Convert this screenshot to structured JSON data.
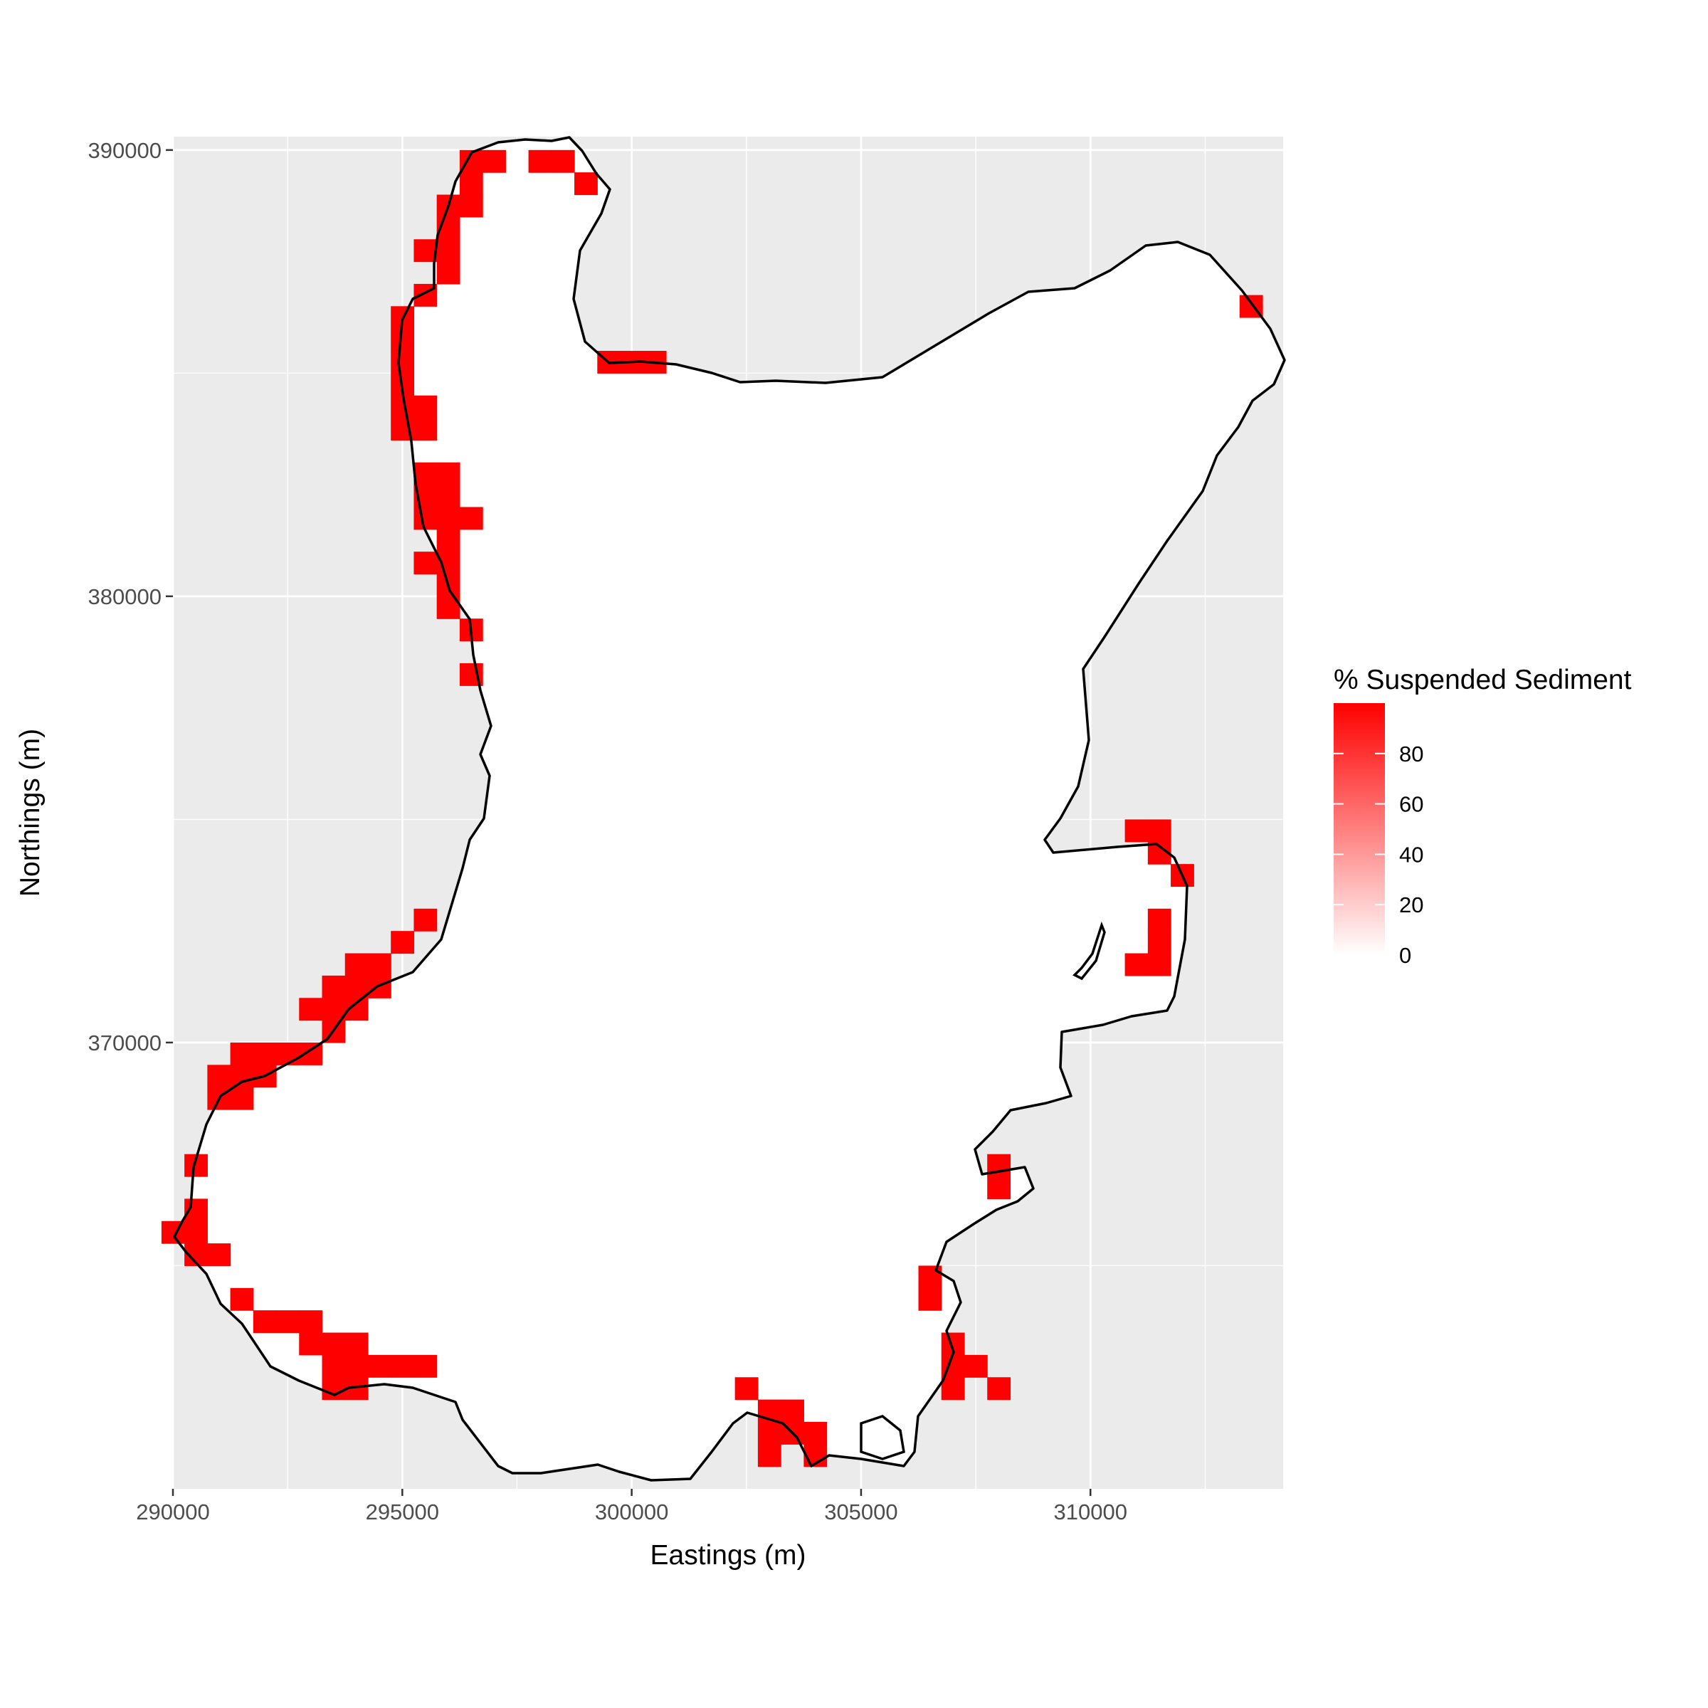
{
  "chart_data": {
    "type": "heatmap",
    "title": "",
    "xlabel": "Eastings (m)",
    "ylabel": "Northings (m)",
    "xlim": [
      290000,
      314200
    ],
    "ylim": [
      360000,
      390300
    ],
    "x_ticks": [
      290000,
      295000,
      300000,
      305000,
      310000
    ],
    "x_tick_labels": [
      "290000",
      "295000",
      "300000",
      "305000",
      "310000"
    ],
    "y_ticks": [
      370000,
      380000,
      390000
    ],
    "y_tick_labels": [
      "370000",
      "380000",
      "390000"
    ],
    "grid": true,
    "panel_background": "#ebebeb",
    "legend": {
      "title": "% Suspended Sediment",
      "position": "right",
      "ticks": [
        0,
        20,
        40,
        60,
        80
      ],
      "tick_labels": [
        "0",
        "20",
        "40",
        "60",
        "80"
      ],
      "range": [
        0,
        100
      ],
      "low_color": "#ffffff",
      "high_color": "#ff0000"
    },
    "cell_size_m": 500,
    "fill_value": 100,
    "sediment_cells": [
      [
        296500,
        389750
      ],
      [
        297000,
        389750
      ],
      [
        298000,
        389750
      ],
      [
        298500,
        389750
      ],
      [
        299000,
        389250
      ],
      [
        296500,
        389250
      ],
      [
        296500,
        388750
      ],
      [
        296000,
        388750
      ],
      [
        296000,
        388250
      ],
      [
        296000,
        387750
      ],
      [
        295500,
        387750
      ],
      [
        296000,
        387250
      ],
      [
        295500,
        386750
      ],
      [
        295000,
        386250
      ],
      [
        295000,
        385750
      ],
      [
        295000,
        385250
      ],
      [
        299500,
        385250
      ],
      [
        300000,
        385250
      ],
      [
        300500,
        385250
      ],
      [
        313500,
        386500
      ],
      [
        295000,
        384750
      ],
      [
        295000,
        384250
      ],
      [
        295500,
        384250
      ],
      [
        295000,
        383750
      ],
      [
        295500,
        383750
      ],
      [
        295500,
        382750
      ],
      [
        296000,
        382750
      ],
      [
        295500,
        382250
      ],
      [
        296000,
        382250
      ],
      [
        295500,
        381750
      ],
      [
        296000,
        381750
      ],
      [
        296500,
        381750
      ],
      [
        296000,
        381250
      ],
      [
        295500,
        380750
      ],
      [
        296000,
        380750
      ],
      [
        296000,
        380250
      ],
      [
        296000,
        379750
      ],
      [
        296500,
        379250
      ],
      [
        296500,
        378250
      ],
      [
        295500,
        372750
      ],
      [
        295000,
        372250
      ],
      [
        294000,
        371750
      ],
      [
        294500,
        371750
      ],
      [
        293500,
        371250
      ],
      [
        294000,
        371250
      ],
      [
        294500,
        371250
      ],
      [
        293000,
        370750
      ],
      [
        293500,
        370750
      ],
      [
        294000,
        370750
      ],
      [
        293500,
        370250
      ],
      [
        291500,
        369750
      ],
      [
        292000,
        369750
      ],
      [
        292500,
        369750
      ],
      [
        293000,
        369750
      ],
      [
        291000,
        369250
      ],
      [
        291500,
        369250
      ],
      [
        292000,
        369250
      ],
      [
        291000,
        368750
      ],
      [
        291500,
        368750
      ],
      [
        290500,
        367250
      ],
      [
        290500,
        366250
      ],
      [
        290000,
        365750
      ],
      [
        290500,
        365750
      ],
      [
        290500,
        365250
      ],
      [
        291000,
        365250
      ],
      [
        291500,
        364250
      ],
      [
        292000,
        363750
      ],
      [
        292500,
        363750
      ],
      [
        293000,
        363750
      ],
      [
        293000,
        363250
      ],
      [
        293500,
        363250
      ],
      [
        294000,
        363250
      ],
      [
        293500,
        362750
      ],
      [
        294000,
        362750
      ],
      [
        294500,
        362750
      ],
      [
        295000,
        362750
      ],
      [
        295500,
        362750
      ],
      [
        293500,
        362250
      ],
      [
        294000,
        362250
      ],
      [
        302500,
        362250
      ],
      [
        303000,
        361750
      ],
      [
        303500,
        361750
      ],
      [
        303000,
        361250
      ],
      [
        303500,
        361250
      ],
      [
        304000,
        361250
      ],
      [
        303000,
        360750
      ],
      [
        304000,
        360750
      ],
      [
        306500,
        364750
      ],
      [
        306500,
        364250
      ],
      [
        307000,
        363250
      ],
      [
        307000,
        362750
      ],
      [
        307500,
        362750
      ],
      [
        307000,
        362250
      ],
      [
        308000,
        362250
      ],
      [
        308000,
        367250
      ],
      [
        308000,
        366750
      ],
      [
        311000,
        374750
      ],
      [
        311500,
        374750
      ],
      [
        311500,
        374250
      ],
      [
        312000,
        373750
      ],
      [
        311500,
        372750
      ],
      [
        311500,
        372250
      ],
      [
        311000,
        371750
      ],
      [
        311500,
        371750
      ]
    ]
  }
}
